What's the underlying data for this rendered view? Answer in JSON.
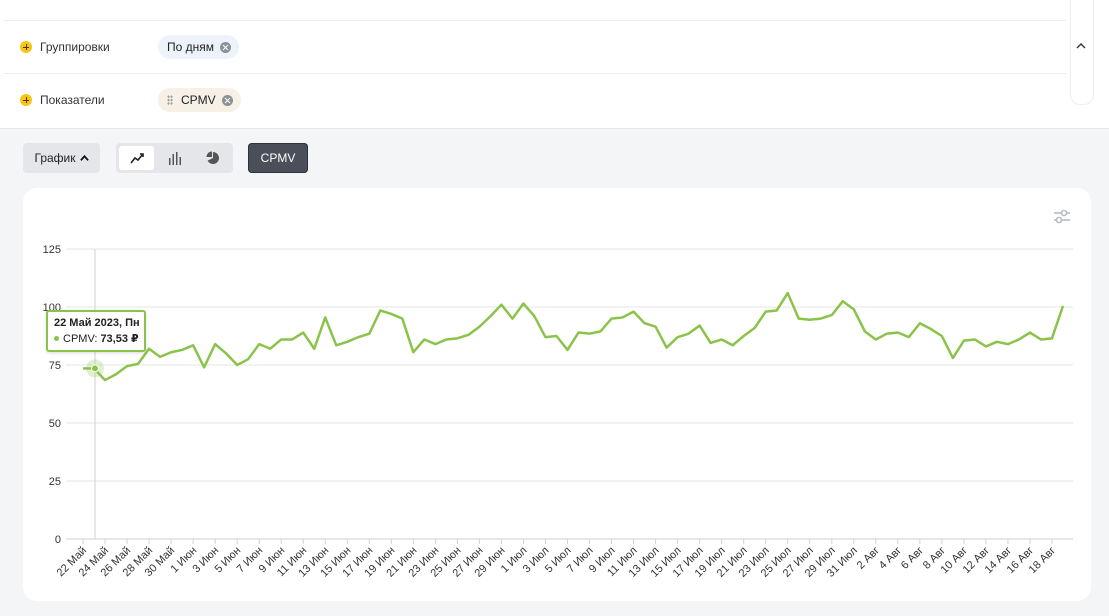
{
  "filters": {
    "groupings": {
      "label": "Группировки",
      "chip": "По дням"
    },
    "metrics": {
      "label": "Показатели",
      "chip": "CPMV"
    }
  },
  "toolbar": {
    "chart_label": "График",
    "views": [
      "line-chart-icon",
      "bar-chart-icon",
      "pie-chart-icon"
    ],
    "active_view": 0,
    "metric_button": "CPMV"
  },
  "colors": {
    "series": "#8bc34a",
    "grid": "#e6e6e6",
    "axis_text": "#333333"
  },
  "tooltip": {
    "date": "22 Май 2023, Пн",
    "series": "CPMV:",
    "value": "73,53 ₽"
  },
  "chart_data": {
    "type": "line",
    "ylim": [
      0,
      125
    ],
    "yticks": [
      0,
      25,
      50,
      75,
      100,
      125
    ],
    "xlabels": [
      "22 Май",
      "24 Май",
      "26 Май",
      "28 Май",
      "30 Май",
      "1 Июн",
      "3 Июн",
      "5 Июн",
      "7 Июн",
      "9 Июн",
      "11 Июн",
      "13 Июн",
      "15 Июн",
      "17 Июн",
      "19 Июн",
      "21 Июн",
      "23 Июн",
      "25 Июн",
      "27 Июн",
      "29 Июн",
      "1 Июл",
      "3 Июл",
      "5 Июл",
      "7 Июл",
      "9 Июл",
      "11 Июл",
      "13 Июл",
      "15 Июл",
      "17 Июл",
      "19 Июл",
      "21 Июл",
      "23 Июл",
      "25 Июл",
      "27 Июл",
      "29 Июл",
      "31 Июл",
      "2 Авг",
      "4 Авг",
      "6 Авг",
      "8 Авг",
      "10 Авг",
      "12 Авг",
      "14 Авг",
      "16 Авг",
      "18 Авг"
    ],
    "label_every": 2,
    "series": [
      {
        "name": "CPMV",
        "values": [
          73.53,
          73.5,
          68.5,
          71,
          74.5,
          75.5,
          82,
          78.5,
          80.5,
          81.5,
          83.5,
          74,
          84,
          80,
          75,
          77.5,
          84,
          82,
          86,
          86,
          89,
          82,
          95.5,
          83.5,
          85,
          87,
          88.5,
          98.5,
          97,
          95,
          80.5,
          86,
          84,
          86,
          86.5,
          88,
          91.5,
          96,
          101,
          95,
          101.5,
          96,
          87,
          87.5,
          81.5,
          89,
          88.5,
          89.5,
          95,
          95.5,
          98,
          93,
          91.5,
          82.5,
          87,
          88.5,
          92,
          84.5,
          86,
          83.5,
          87.5,
          91,
          98,
          98.5,
          106,
          95,
          94.5,
          95,
          96.5,
          102.5,
          99,
          89.5,
          86,
          88.5,
          89,
          87,
          93,
          90.5,
          87.5,
          78,
          85.5,
          86,
          83,
          85,
          84,
          86,
          89,
          86,
          86.5,
          100.5
        ]
      }
    ]
  }
}
